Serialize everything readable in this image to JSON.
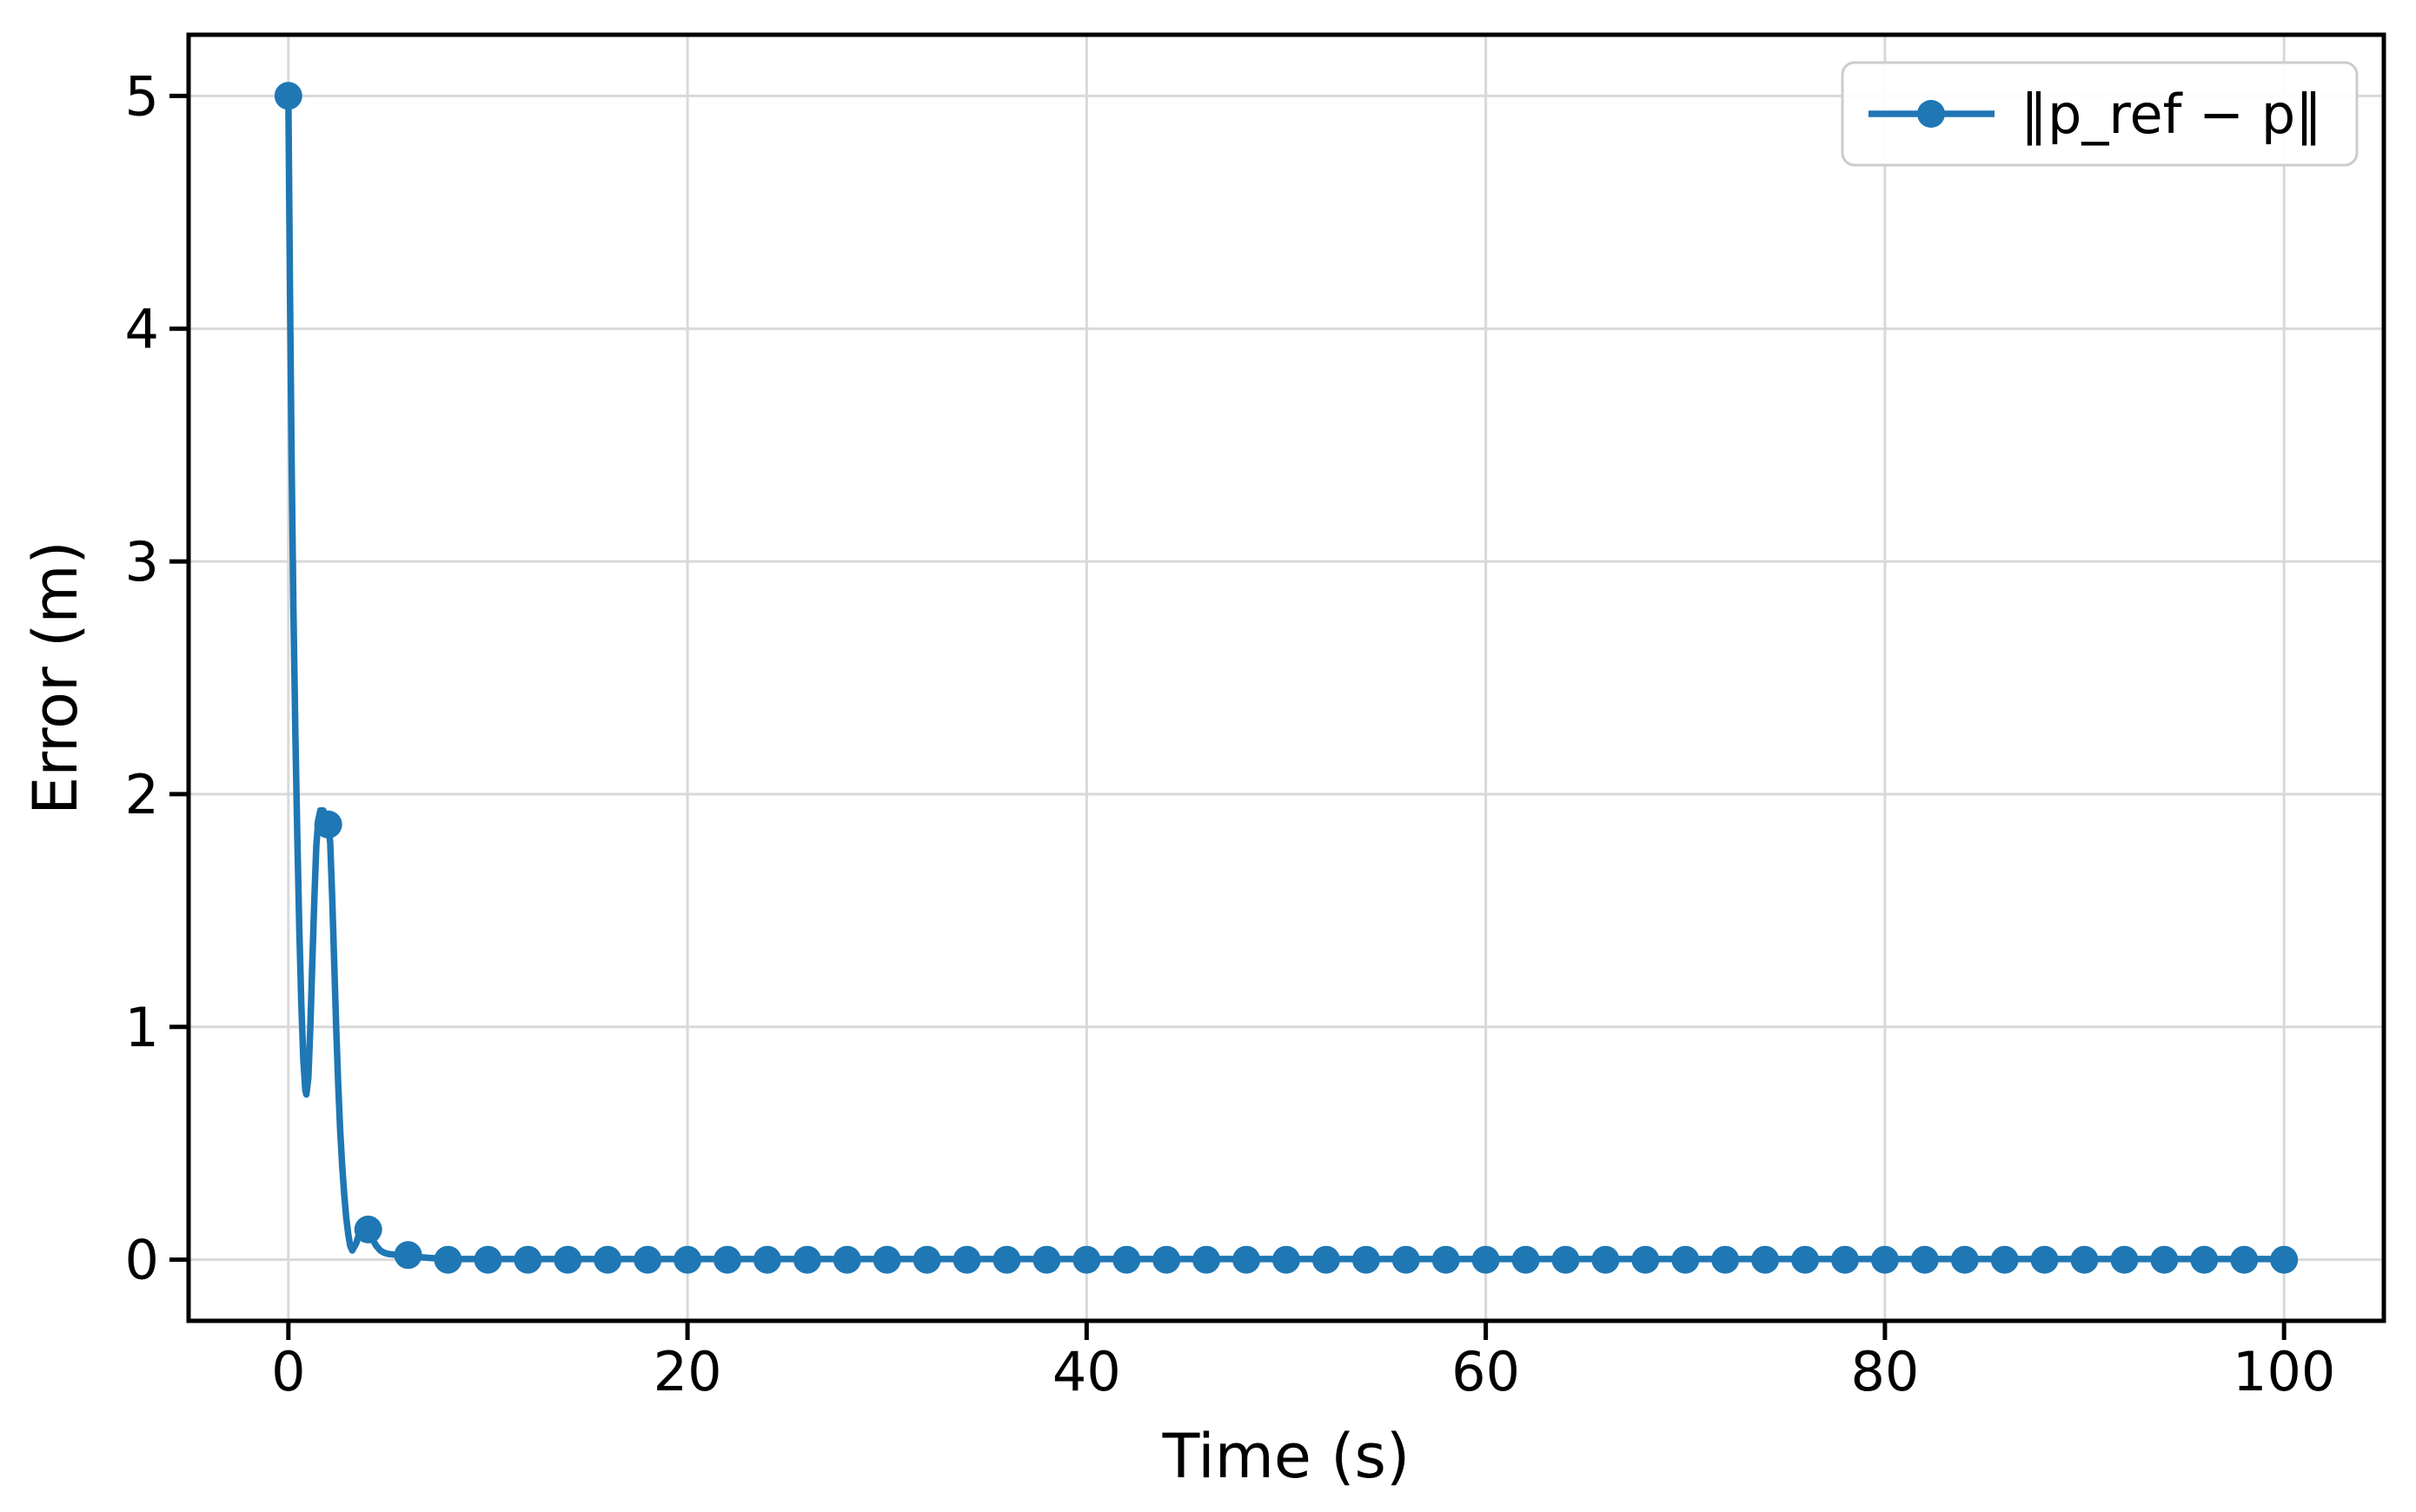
{
  "chart_data": {
    "type": "line",
    "xlabel": "Time (s)",
    "ylabel": "Error (m)",
    "xlim": [
      -5,
      105
    ],
    "ylim": [
      -0.2625,
      5.2625
    ],
    "xticks": [
      0,
      20,
      40,
      60,
      80,
      100
    ],
    "yticks": [
      0,
      1,
      2,
      3,
      4,
      5
    ],
    "grid": true,
    "legend": {
      "position": "upper right",
      "entries": [
        {
          "label": "‖p_ref − p‖",
          "color": "#1f77b4",
          "marker": "circle-marker",
          "line": "solid"
        }
      ]
    },
    "colors": {
      "line": "#1f77b4",
      "grid": "#d9d9d9",
      "spine": "#000000",
      "background": "#ffffff",
      "legend_edge": "#cccccc",
      "legend_fill": "#ffffff"
    },
    "series": [
      {
        "name": "‖p_ref − p‖",
        "color": "#1f77b4",
        "line_width": 7.5,
        "marker_radius": 16,
        "marker_every_s": 2,
        "line": {
          "x": [
            0,
            0.08,
            0.16,
            0.25,
            0.35,
            0.45,
            0.55,
            0.65,
            0.75,
            0.85,
            0.9,
            1.0,
            1.1,
            1.2,
            1.3,
            1.4,
            1.5,
            1.6,
            1.75,
            1.9,
            2.0,
            2.1,
            2.2,
            2.3,
            2.4,
            2.5,
            2.6,
            2.7,
            2.8,
            2.9,
            3.0,
            3.1,
            3.2,
            3.4,
            3.6,
            3.8,
            4.0,
            4.2,
            4.4,
            4.6,
            4.8,
            5.0,
            5.5,
            6.0,
            6.5,
            7.0,
            8.0,
            100
          ],
          "y": [
            5.0,
            4.15,
            3.45,
            2.8,
            2.25,
            1.8,
            1.42,
            1.1,
            0.86,
            0.73,
            0.71,
            0.78,
            1.0,
            1.28,
            1.55,
            1.78,
            1.89,
            1.93,
            1.93,
            1.9,
            1.87,
            1.79,
            1.55,
            1.27,
            0.99,
            0.75,
            0.55,
            0.4,
            0.28,
            0.18,
            0.11,
            0.06,
            0.04,
            0.07,
            0.13,
            0.16,
            0.13,
            0.09,
            0.06,
            0.04,
            0.03,
            0.025,
            0.02,
            0.02,
            0.012,
            0.008,
            0.003,
            0.003
          ]
        },
        "markers": {
          "x": [
            0,
            2,
            4,
            6,
            8,
            10,
            12,
            14,
            16,
            18,
            20,
            22,
            24,
            26,
            28,
            30,
            32,
            34,
            36,
            38,
            40,
            42,
            44,
            46,
            48,
            50,
            52,
            54,
            56,
            58,
            60,
            62,
            64,
            66,
            68,
            70,
            72,
            74,
            76,
            78,
            80,
            82,
            84,
            86,
            88,
            90,
            92,
            94,
            96,
            98,
            100
          ],
          "y": [
            5.0,
            1.87,
            0.13,
            0.02,
            0.0,
            0.0,
            0.0,
            0.0,
            0.0,
            0.0,
            0.0,
            0.0,
            0.0,
            0.0,
            0.0,
            0.0,
            0.0,
            0.0,
            0.0,
            0.0,
            0.0,
            0.0,
            0.0,
            0.0,
            0.0,
            0.0,
            0.0,
            0.0,
            0.0,
            0.0,
            0.0,
            0.0,
            0.0,
            0.0,
            0.0,
            0.0,
            0.0,
            0.0,
            0.0,
            0.0,
            0.0,
            0.0,
            0.0,
            0.0,
            0.0,
            0.0,
            0.0,
            0.0,
            0.0,
            0.0,
            0.0
          ]
        }
      }
    ]
  }
}
